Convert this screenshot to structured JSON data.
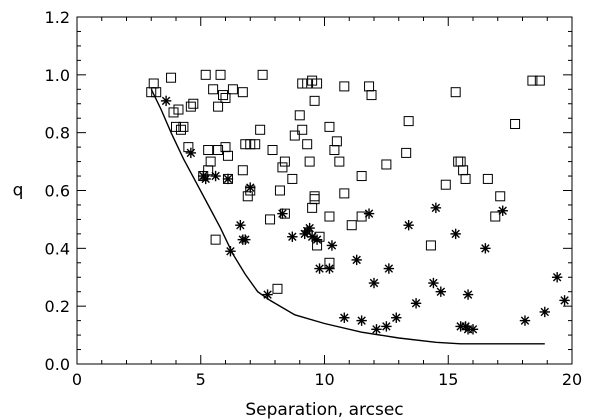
{
  "chart_data": {
    "type": "scatter",
    "xlabel": "Separation, arcsec",
    "ylabel": "q",
    "xlim": [
      0,
      20
    ],
    "ylim": [
      0,
      1.2
    ],
    "x_ticks": [
      0,
      5,
      10,
      15,
      20
    ],
    "y_ticks": [
      0.0,
      0.2,
      0.4,
      0.6,
      0.8,
      1.0,
      1.2
    ],
    "x_tick_labels": [
      "0",
      "5",
      "10",
      "15",
      "20"
    ],
    "y_tick_labels": [
      "0.0",
      "0.2",
      "0.4",
      "0.6",
      "0.8",
      "1.0",
      "1.2"
    ],
    "grid": false,
    "legend": "none",
    "series": [
      {
        "marker": "square",
        "points": [
          [
            3.0,
            0.94
          ],
          [
            3.1,
            0.97
          ],
          [
            3.2,
            0.94
          ],
          [
            3.8,
            0.99
          ],
          [
            3.9,
            0.87
          ],
          [
            4.0,
            0.82
          ],
          [
            4.1,
            0.88
          ],
          [
            4.2,
            0.81
          ],
          [
            4.3,
            0.82
          ],
          [
            4.5,
            0.75
          ],
          [
            4.6,
            0.89
          ],
          [
            4.7,
            0.9
          ],
          [
            5.1,
            0.65
          ],
          [
            5.2,
            1.0
          ],
          [
            5.3,
            0.74
          ],
          [
            5.3,
            0.67
          ],
          [
            5.4,
            0.7
          ],
          [
            5.5,
            0.95
          ],
          [
            5.6,
            0.43
          ],
          [
            5.7,
            0.89
          ],
          [
            5.7,
            0.74
          ],
          [
            5.8,
            1.0
          ],
          [
            5.9,
            0.93
          ],
          [
            6.0,
            0.75
          ],
          [
            6.0,
            0.92
          ],
          [
            6.1,
            0.64
          ],
          [
            6.1,
            0.72
          ],
          [
            6.3,
            0.95
          ],
          [
            6.7,
            0.94
          ],
          [
            6.7,
            0.67
          ],
          [
            6.8,
            0.76
          ],
          [
            6.9,
            0.58
          ],
          [
            7.0,
            0.6
          ],
          [
            7.0,
            0.76
          ],
          [
            7.2,
            0.76
          ],
          [
            7.4,
            0.81
          ],
          [
            7.5,
            1.0
          ],
          [
            7.8,
            0.5
          ],
          [
            7.9,
            0.74
          ],
          [
            8.1,
            0.26
          ],
          [
            8.2,
            0.6
          ],
          [
            8.3,
            0.68
          ],
          [
            8.4,
            0.7
          ],
          [
            8.4,
            0.52
          ],
          [
            8.7,
            0.64
          ],
          [
            8.8,
            0.79
          ],
          [
            9.0,
            0.86
          ],
          [
            9.1,
            0.97
          ],
          [
            9.1,
            0.81
          ],
          [
            9.3,
            0.97
          ],
          [
            9.3,
            0.76
          ],
          [
            9.4,
            0.7
          ],
          [
            9.5,
            0.98
          ],
          [
            9.5,
            0.54
          ],
          [
            9.6,
            0.57
          ],
          [
            9.6,
            0.91
          ],
          [
            9.6,
            0.58
          ],
          [
            9.7,
            0.41
          ],
          [
            9.7,
            0.97
          ],
          [
            9.8,
            0.44
          ],
          [
            10.2,
            0.51
          ],
          [
            10.2,
            0.35
          ],
          [
            10.2,
            0.82
          ],
          [
            10.4,
            0.74
          ],
          [
            10.5,
            0.77
          ],
          [
            10.6,
            0.7
          ],
          [
            10.8,
            0.59
          ],
          [
            10.8,
            0.96
          ],
          [
            11.1,
            0.48
          ],
          [
            11.5,
            0.51
          ],
          [
            11.5,
            0.65
          ],
          [
            11.8,
            0.96
          ],
          [
            11.9,
            0.93
          ],
          [
            12.5,
            0.69
          ],
          [
            13.3,
            0.73
          ],
          [
            13.4,
            0.84
          ],
          [
            14.3,
            0.41
          ],
          [
            14.9,
            0.62
          ],
          [
            15.3,
            0.94
          ],
          [
            15.4,
            0.7
          ],
          [
            15.5,
            0.7
          ],
          [
            15.6,
            0.67
          ],
          [
            15.7,
            0.64
          ],
          [
            16.6,
            0.64
          ],
          [
            16.9,
            0.51
          ],
          [
            17.1,
            0.58
          ],
          [
            17.7,
            0.83
          ],
          [
            18.4,
            0.98
          ],
          [
            18.7,
            0.98
          ]
        ]
      },
      {
        "marker": "asterisk",
        "points": [
          [
            3.6,
            0.91
          ],
          [
            4.6,
            0.73
          ],
          [
            5.1,
            0.65
          ],
          [
            5.2,
            0.64
          ],
          [
            5.6,
            0.65
          ],
          [
            6.1,
            0.64
          ],
          [
            6.2,
            0.39
          ],
          [
            6.6,
            0.48
          ],
          [
            6.7,
            0.43
          ],
          [
            6.8,
            0.43
          ],
          [
            7.0,
            0.61
          ],
          [
            7.7,
            0.24
          ],
          [
            8.3,
            0.52
          ],
          [
            8.7,
            0.44
          ],
          [
            9.2,
            0.45
          ],
          [
            9.3,
            0.46
          ],
          [
            9.4,
            0.47
          ],
          [
            9.5,
            0.44
          ],
          [
            9.7,
            0.43
          ],
          [
            9.8,
            0.33
          ],
          [
            10.2,
            0.33
          ],
          [
            10.3,
            0.41
          ],
          [
            10.8,
            0.16
          ],
          [
            11.3,
            0.36
          ],
          [
            11.5,
            0.15
          ],
          [
            11.8,
            0.52
          ],
          [
            12.0,
            0.28
          ],
          [
            12.1,
            0.12
          ],
          [
            12.5,
            0.13
          ],
          [
            12.6,
            0.33
          ],
          [
            12.9,
            0.16
          ],
          [
            13.4,
            0.48
          ],
          [
            13.7,
            0.21
          ],
          [
            14.4,
            0.28
          ],
          [
            14.5,
            0.54
          ],
          [
            14.7,
            0.25
          ],
          [
            15.3,
            0.45
          ],
          [
            15.5,
            0.13
          ],
          [
            15.7,
            0.13
          ],
          [
            15.8,
            0.12
          ],
          [
            15.8,
            0.24
          ],
          [
            16.0,
            0.12
          ],
          [
            16.5,
            0.4
          ],
          [
            17.2,
            0.53
          ],
          [
            18.1,
            0.15
          ],
          [
            18.9,
            0.18
          ],
          [
            19.4,
            0.3
          ],
          [
            19.7,
            0.22
          ]
        ]
      },
      {
        "marker": "line",
        "points": [
          [
            3.0,
            0.95
          ],
          [
            3.4,
            0.88
          ],
          [
            3.8,
            0.8
          ],
          [
            4.3,
            0.71
          ],
          [
            4.8,
            0.63
          ],
          [
            5.3,
            0.55
          ],
          [
            5.8,
            0.47
          ],
          [
            6.3,
            0.38
          ],
          [
            6.8,
            0.31
          ],
          [
            7.3,
            0.25
          ],
          [
            7.8,
            0.22
          ],
          [
            8.8,
            0.17
          ],
          [
            10.0,
            0.14
          ],
          [
            11.5,
            0.11
          ],
          [
            13.0,
            0.09
          ],
          [
            14.5,
            0.075
          ],
          [
            15.5,
            0.07
          ],
          [
            17.0,
            0.07
          ],
          [
            18.9,
            0.07
          ]
        ]
      }
    ]
  }
}
